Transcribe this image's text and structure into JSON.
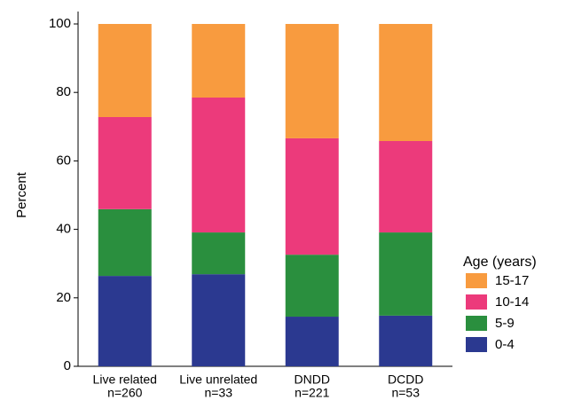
{
  "chart_data": {
    "type": "stacked_bar",
    "y_label": "Percent",
    "categories": [
      "Live related",
      "Live unrelated",
      "DNDD",
      "DCDD"
    ],
    "category_counts": [
      "n=260",
      "n=33",
      "n=221",
      "n=53"
    ],
    "legend_title": "Age (years)",
    "series": [
      {
        "name": "0-4",
        "color": "#2b3990",
        "values": [
          26.4,
          26.9,
          14.5,
          14.8
        ]
      },
      {
        "name": "5-9",
        "color": "#2a8f3e",
        "values": [
          19.5,
          12.2,
          18.1,
          24.3
        ]
      },
      {
        "name": "10-14",
        "color": "#ec3a7b",
        "values": [
          26.9,
          39.4,
          34.0,
          26.7
        ]
      },
      {
        "name": "15-17",
        "color": "#f89b3f",
        "values": [
          27.2,
          21.5,
          33.4,
          34.2
        ]
      }
    ],
    "ylim": [
      0,
      100
    ],
    "yticks": [
      0,
      20,
      40,
      60,
      80,
      100
    ],
    "grid": false,
    "legend": "right"
  }
}
